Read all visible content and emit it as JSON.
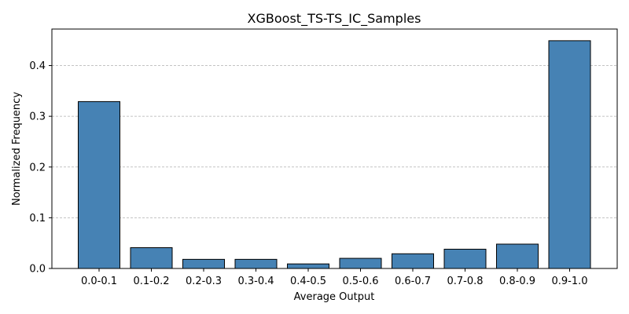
{
  "chart_data": {
    "type": "bar",
    "title": "XGBoost_TS-TS_IC_Samples",
    "xlabel": "Average Output",
    "ylabel": "Normalized Frequency",
    "categories": [
      "0.0-0.1",
      "0.1-0.2",
      "0.2-0.3",
      "0.3-0.4",
      "0.4-0.5",
      "0.5-0.6",
      "0.6-0.7",
      "0.7-0.8",
      "0.8-0.9",
      "0.9-1.0"
    ],
    "values": [
      0.329,
      0.041,
      0.018,
      0.018,
      0.009,
      0.02,
      0.029,
      0.038,
      0.048,
      0.449
    ],
    "ylim": [
      0,
      0.472
    ],
    "yticks": [
      0.0,
      0.1,
      0.2,
      0.3,
      0.4
    ],
    "ytick_labels": [
      "0.0",
      "0.1",
      "0.2",
      "0.3",
      "0.4"
    ],
    "grid": "y-dashed",
    "bar_color": "#4682b4",
    "edge_color": "#000000"
  }
}
